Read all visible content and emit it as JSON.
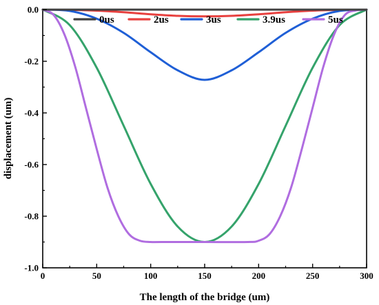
{
  "chart_data": {
    "type": "line",
    "xlabel": "The length of the bridge (um)",
    "ylabel": "displacement  (um)",
    "xlim": [
      0,
      300
    ],
    "ylim": [
      -1.0,
      0.0
    ],
    "x_ticks": [
      0,
      50,
      100,
      150,
      200,
      250,
      300
    ],
    "x_tick_labels": [
      "0",
      "50",
      "100",
      "150",
      "200",
      "250",
      "300"
    ],
    "y_ticks": [
      0.0,
      -0.2,
      -0.4,
      -0.6,
      -0.8,
      -1.0
    ],
    "y_tick_labels": [
      "0.0",
      "-0.2",
      "-0.4",
      "-0.6",
      "-0.8",
      "-1.0"
    ],
    "grid": false,
    "legend_position": "top",
    "series": [
      {
        "name": "0us",
        "color": "#404040",
        "x": [
          0,
          50,
          100,
          150,
          200,
          250,
          300
        ],
        "y": [
          0,
          0,
          0,
          0,
          0,
          0,
          0
        ]
      },
      {
        "name": "2us",
        "color": "#e8413f",
        "x": [
          0,
          25,
          50,
          75,
          100,
          125,
          150,
          175,
          200,
          225,
          250,
          275,
          300
        ],
        "y": [
          0,
          -0.001,
          -0.004,
          -0.01,
          -0.018,
          -0.024,
          -0.026,
          -0.024,
          -0.018,
          -0.01,
          -0.004,
          -0.001,
          0
        ]
      },
      {
        "name": "3us",
        "color": "#1f5fd6",
        "x": [
          0,
          25,
          50,
          75,
          100,
          125,
          150,
          175,
          200,
          225,
          250,
          275,
          300
        ],
        "y": [
          0,
          -0.005,
          -0.035,
          -0.09,
          -0.165,
          -0.235,
          -0.272,
          -0.235,
          -0.165,
          -0.09,
          -0.035,
          -0.005,
          0
        ]
      },
      {
        "name": "3.9us",
        "color": "#35a36b",
        "x": [
          0,
          25,
          50,
          75,
          100,
          125,
          150,
          175,
          200,
          225,
          250,
          275,
          300
        ],
        "y": [
          0,
          -0.06,
          -0.225,
          -0.45,
          -0.675,
          -0.84,
          -0.9,
          -0.84,
          -0.675,
          -0.45,
          -0.225,
          -0.06,
          0
        ]
      },
      {
        "name": "5us",
        "color": "#b06de0",
        "x": [
          0,
          10,
          20,
          30,
          40,
          50,
          60,
          70,
          80,
          90,
          100,
          110,
          150,
          190,
          200,
          210,
          220,
          230,
          240,
          250,
          260,
          270,
          280,
          290,
          300
        ],
        "y": [
          0,
          -0.02,
          -0.095,
          -0.22,
          -0.38,
          -0.54,
          -0.69,
          -0.8,
          -0.87,
          -0.895,
          -0.9,
          -0.9,
          -0.9,
          -0.9,
          -0.895,
          -0.87,
          -0.8,
          -0.69,
          -0.54,
          -0.38,
          -0.22,
          -0.095,
          -0.02,
          -0.003,
          0
        ]
      }
    ]
  }
}
